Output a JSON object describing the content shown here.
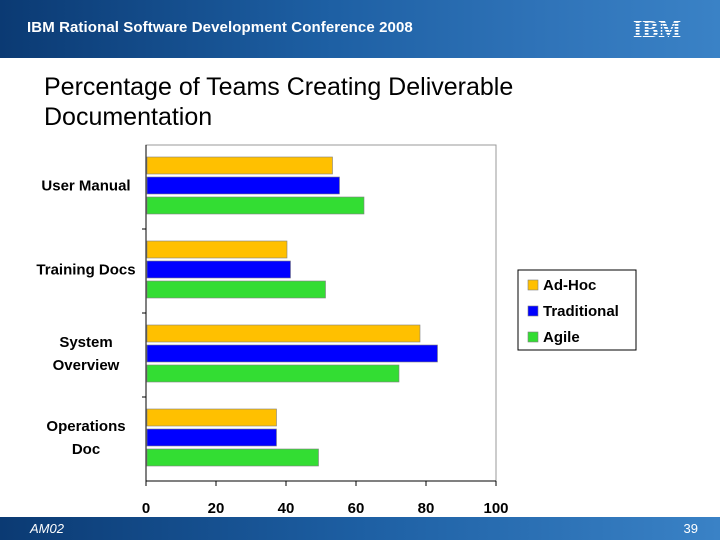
{
  "header": {
    "title": "IBM Rational Software Development Conference 2008",
    "logo_text": "IBM"
  },
  "slide": {
    "title": "Percentage of Teams Creating Deliverable Documentation"
  },
  "footer": {
    "code": "AM02",
    "page_number": "39"
  },
  "colors": {
    "banner_dark": "#0b3a73",
    "adhoc": "#ffc000",
    "traditional": "#0000ff",
    "agile": "#33dd33"
  },
  "chart_data": {
    "type": "bar",
    "orientation": "horizontal",
    "title": "",
    "xlabel": "",
    "ylabel": "",
    "xlim": [
      0,
      100
    ],
    "x_ticks": [
      0,
      20,
      40,
      60,
      80,
      100
    ],
    "grid": false,
    "legend_position": "right",
    "categories": [
      [
        "User Manual"
      ],
      [
        "Training Docs"
      ],
      [
        "System",
        "Overview"
      ],
      [
        "Operations",
        "Doc"
      ]
    ],
    "series": [
      {
        "name": "Ad-Hoc",
        "color": "#ffc000",
        "values": [
          53,
          40,
          78,
          37
        ]
      },
      {
        "name": "Traditional",
        "color": "#0000ff",
        "values": [
          55,
          41,
          83,
          37
        ]
      },
      {
        "name": "Agile",
        "color": "#33dd33",
        "values": [
          62,
          51,
          72,
          49
        ]
      }
    ]
  }
}
